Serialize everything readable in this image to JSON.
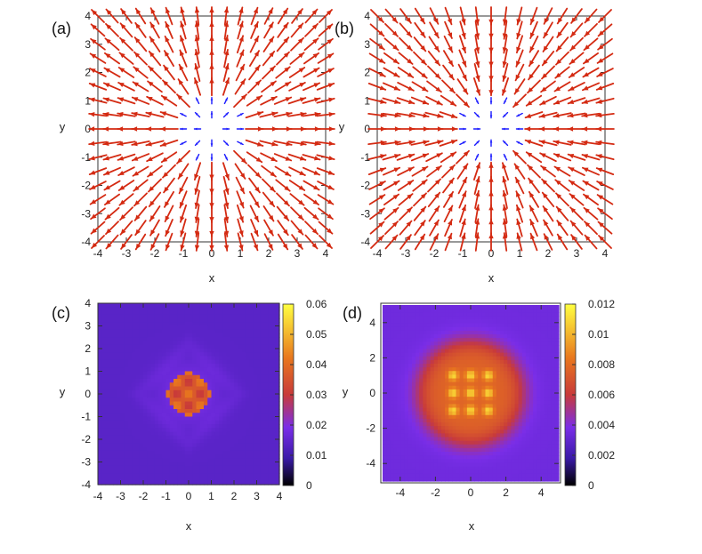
{
  "chart_data": [
    {
      "panel": "(a)",
      "type": "quiver",
      "xlabel": "x",
      "ylabel": "y",
      "xlim": [
        -4,
        4
      ],
      "ylim": [
        -4,
        4
      ],
      "xticks": [
        "-4",
        "-3",
        "-2",
        "-1",
        "0",
        "1",
        "2",
        "3",
        "4"
      ],
      "yticks": [
        "-4",
        "-3",
        "-2",
        "-1",
        "0",
        "1",
        "2",
        "3",
        "4"
      ],
      "grid_spacing": 0.5,
      "field": "radial outward; vectors inside r < 1.25 drawn short (blue), outer vectors long (red)",
      "inner_color": "#1a1aff",
      "outer_color": "#d42a12"
    },
    {
      "panel": "(b)",
      "type": "quiver",
      "xlabel": "x",
      "ylabel": "y",
      "xlim": [
        -4,
        4
      ],
      "ylim": [
        -4,
        4
      ],
      "xticks": [
        "-4",
        "-3",
        "-2",
        "-1",
        "0",
        "1",
        "2",
        "3",
        "4"
      ],
      "yticks": [
        "-4",
        "-3",
        "-2",
        "-1",
        "0",
        "1",
        "2",
        "3",
        "4"
      ],
      "grid_spacing": 0.5,
      "field": "radial inward; vectors inside r < 1.25 drawn short (blue), outer vectors long (red)",
      "inner_color": "#1a1aff",
      "outer_color": "#d42a12"
    },
    {
      "panel": "(c)",
      "type": "heatmap",
      "xlabel": "x",
      "ylabel": "y",
      "xlim": [
        -4,
        4
      ],
      "ylim": [
        -4,
        4
      ],
      "xticks": [
        "-4",
        "-3",
        "-2",
        "-1",
        "0",
        "1",
        "2",
        "3",
        "4"
      ],
      "yticks": [
        "-4",
        "-3",
        "-2",
        "-1",
        "0",
        "1",
        "2",
        "3",
        "4"
      ],
      "colorbar_range": [
        0,
        0.06
      ],
      "colorbar_ticks": [
        "0",
        "0.01",
        "0.02",
        "0.03",
        "0.04",
        "0.05",
        "0.06"
      ],
      "peak_value": 0.045,
      "background_value": 0.014,
      "description": "small bright diamond-shaped core near the origin, radius about 0.7"
    },
    {
      "panel": "(d)",
      "type": "heatmap",
      "xlabel": "x",
      "ylabel": "y",
      "xlim": [
        -5,
        5
      ],
      "ylim": [
        -5,
        5
      ],
      "xticks": [
        "-4",
        "-2",
        "0",
        "2",
        "4"
      ],
      "yticks": [
        "-4",
        "-2",
        "0",
        "2",
        "4"
      ],
      "colorbar_range": [
        0,
        0.012
      ],
      "colorbar_ticks": [
        "0",
        "0.002",
        "0.004",
        "0.006",
        "0.008",
        "0.01",
        "0.012"
      ],
      "peak_value": 0.011,
      "background_value": 0.0035,
      "description": "broad circular bright region of radius about 3 with a 3x3 lattice of peaks"
    }
  ]
}
